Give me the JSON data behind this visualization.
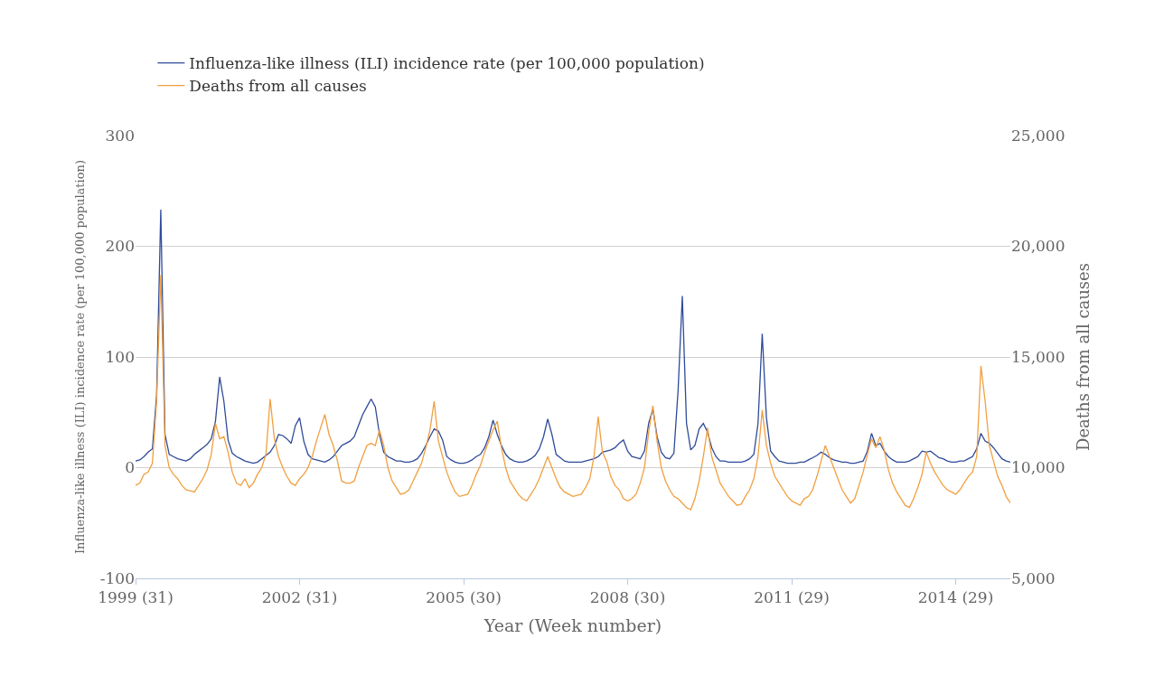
{
  "chart_data": {
    "type": "line",
    "xlabel": "Year (Week number)",
    "ylabel": "Influenza-like illness (ILI) incidence rate (per 100,000 population)",
    "y2label": "Deaths from all causes",
    "categories": [
      "1999 (31)",
      null,
      null,
      null,
      null,
      null,
      null,
      null,
      null,
      null,
      null,
      null,
      null,
      null,
      null,
      null,
      null,
      null,
      null,
      null,
      null,
      null,
      null,
      null,
      null,
      null,
      null,
      null,
      null,
      null,
      null,
      null,
      null,
      null,
      null,
      null,
      null,
      null,
      null,
      "2002 (31)",
      null,
      null,
      null,
      null,
      null,
      null,
      null,
      null,
      null,
      null,
      null,
      null,
      null,
      null,
      null,
      null,
      null,
      null,
      null,
      null,
      null,
      null,
      null,
      null,
      null,
      null,
      null,
      null,
      null,
      null,
      null,
      null,
      null,
      null,
      null,
      null,
      null,
      null,
      "2005 (30)",
      null,
      null,
      null,
      null,
      null,
      null,
      null,
      null,
      null,
      null,
      null,
      null,
      null,
      null,
      null,
      null,
      null,
      null,
      null,
      null,
      null,
      null,
      null,
      null,
      null,
      null,
      null,
      null,
      null,
      null,
      null,
      null,
      null,
      null,
      null,
      null,
      null,
      null,
      "2008 (30)",
      null,
      null,
      null,
      null,
      null,
      null,
      null,
      null,
      null,
      null,
      null,
      null,
      null,
      null,
      null,
      null,
      null,
      null,
      null,
      null,
      null,
      null,
      null,
      null,
      null,
      null,
      null,
      null,
      null,
      null,
      null,
      null,
      null,
      null,
      null,
      null,
      null,
      null,
      "2011 (29)",
      null,
      null,
      null,
      null,
      null,
      null,
      null,
      null,
      null,
      null,
      null,
      null,
      null,
      null,
      null,
      null,
      null,
      null,
      null,
      null,
      null,
      null,
      null,
      null,
      null,
      null,
      null,
      null,
      null,
      null,
      null,
      null,
      null,
      null,
      null,
      null,
      null,
      null,
      "2014 (29)",
      null,
      null,
      null,
      null,
      null,
      null,
      null,
      null,
      null,
      null,
      null,
      null,
      null
    ],
    "ylim": [
      -100,
      300
    ],
    "yticks": [
      -100,
      0,
      100,
      200,
      300
    ],
    "y2lim": [
      5000,
      25000
    ],
    "y2ticks": [
      {
        "value": 5000,
        "label": "5,000"
      },
      {
        "value": 10000,
        "label": "10,000"
      },
      {
        "value": 15000,
        "label": "15,000"
      },
      {
        "value": 20000,
        "label": "20,000"
      },
      {
        "value": 25000,
        "label": "25,000"
      }
    ],
    "grid": "y",
    "legend": "top left",
    "marker": "none",
    "line_style": "solid",
    "series": [
      {
        "name": "Influenza-like illness (ILI) incidence rate (per 100,000 population)",
        "color": "#2f4b9a",
        "values": [
          6,
          7,
          10,
          14,
          17,
          65,
          233,
          30,
          12,
          10,
          8,
          7,
          6,
          8,
          12,
          15,
          18,
          21,
          26,
          42,
          82,
          60,
          25,
          13,
          10,
          8,
          6,
          5,
          4,
          5,
          8,
          11,
          14,
          20,
          30,
          29,
          26,
          22,
          38,
          45,
          24,
          12,
          8,
          7,
          6,
          5,
          7,
          10,
          15,
          20,
          22,
          24,
          28,
          38,
          48,
          55,
          62,
          55,
          30,
          14,
          10,
          8,
          6,
          6,
          5,
          5,
          6,
          8,
          13,
          20,
          28,
          35,
          33,
          25,
          10,
          7,
          5,
          4,
          4,
          5,
          7,
          10,
          12,
          18,
          28,
          43,
          30,
          20,
          12,
          8,
          6,
          5,
          5,
          6,
          8,
          11,
          17,
          28,
          44,
          30,
          12,
          9,
          6,
          5,
          5,
          5,
          5,
          6,
          7,
          8,
          10,
          14,
          15,
          16,
          18,
          22,
          25,
          15,
          10,
          9,
          8,
          15,
          40,
          53,
          28,
          14,
          9,
          8,
          13,
          70,
          155,
          40,
          16,
          20,
          35,
          40,
          32,
          18,
          10,
          6,
          6,
          5,
          5,
          5,
          5,
          6,
          8,
          12,
          40,
          121,
          45,
          15,
          10,
          6,
          5,
          4,
          4,
          4,
          5,
          5,
          7,
          9,
          11,
          14,
          12,
          9,
          7,
          6,
          5,
          5,
          4,
          4,
          5,
          6,
          15,
          31,
          20,
          22,
          15,
          10,
          7,
          5,
          5,
          5,
          6,
          8,
          10,
          15,
          14,
          15,
          12,
          9,
          8,
          6,
          5,
          5,
          6,
          6,
          8,
          10,
          17,
          31,
          24,
          22,
          18,
          13,
          8,
          6,
          5
        ]
      },
      {
        "name": "Deaths from all causes",
        "color": "#f0a040",
        "axis": "y2",
        "values": [
          9200,
          9300,
          9700,
          9800,
          10200,
          13000,
          18700,
          11000,
          10000,
          9700,
          9500,
          9200,
          9000,
          8950,
          8900,
          9200,
          9500,
          9900,
          10600,
          12000,
          11300,
          11400,
          10700,
          9800,
          9300,
          9200,
          9500,
          9100,
          9300,
          9700,
          10000,
          10600,
          13100,
          11300,
          10500,
          10000,
          9600,
          9300,
          9200,
          9500,
          9700,
          10000,
          10500,
          11200,
          11800,
          12400,
          11500,
          11000,
          10300,
          9400,
          9300,
          9300,
          9400,
          10000,
          10500,
          11000,
          11100,
          11000,
          11700,
          11000,
          10000,
          9400,
          9100,
          8800,
          8850,
          9000,
          9400,
          9800,
          10200,
          10900,
          11700,
          13000,
          11200,
          10500,
          9800,
          9300,
          8900,
          8700,
          8750,
          8800,
          9200,
          9700,
          10100,
          10700,
          11200,
          11700,
          12100,
          10900,
          10000,
          9400,
          9100,
          8800,
          8600,
          8500,
          8800,
          9100,
          9500,
          10000,
          10500,
          10000,
          9500,
          9100,
          8900,
          8800,
          8700,
          8750,
          8800,
          9100,
          9500,
          10500,
          12300,
          10700,
          10300,
          9600,
          9200,
          9000,
          8600,
          8500,
          8600,
          8800,
          9300,
          10000,
          11600,
          12800,
          11200,
          10000,
          9400,
          9000,
          8700,
          8600,
          8400,
          8200,
          8100,
          8600,
          9400,
          10500,
          11800,
          10500,
          9900,
          9300,
          9000,
          8700,
          8500,
          8300,
          8350,
          8700,
          9000,
          9500,
          10500,
          12600,
          11000,
          10200,
          9600,
          9300,
          9000,
          8700,
          8500,
          8400,
          8300,
          8600,
          8700,
          9000,
          9600,
          10300,
          11000,
          10500,
          10000,
          9500,
          9000,
          8700,
          8400,
          8600,
          9200,
          9800,
          10600,
          11300,
          10900,
          11400,
          10800,
          9900,
          9300,
          8900,
          8600,
          8300,
          8200,
          8600,
          9100,
          9700,
          10700,
          10200,
          9800,
          9500,
          9200,
          9000,
          8900,
          8800,
          9000,
          9300,
          9600,
          9800,
          10500,
          14600,
          13000,
          11000,
          10300,
          9600,
          9200,
          8700,
          8400
        ]
      }
    ]
  }
}
